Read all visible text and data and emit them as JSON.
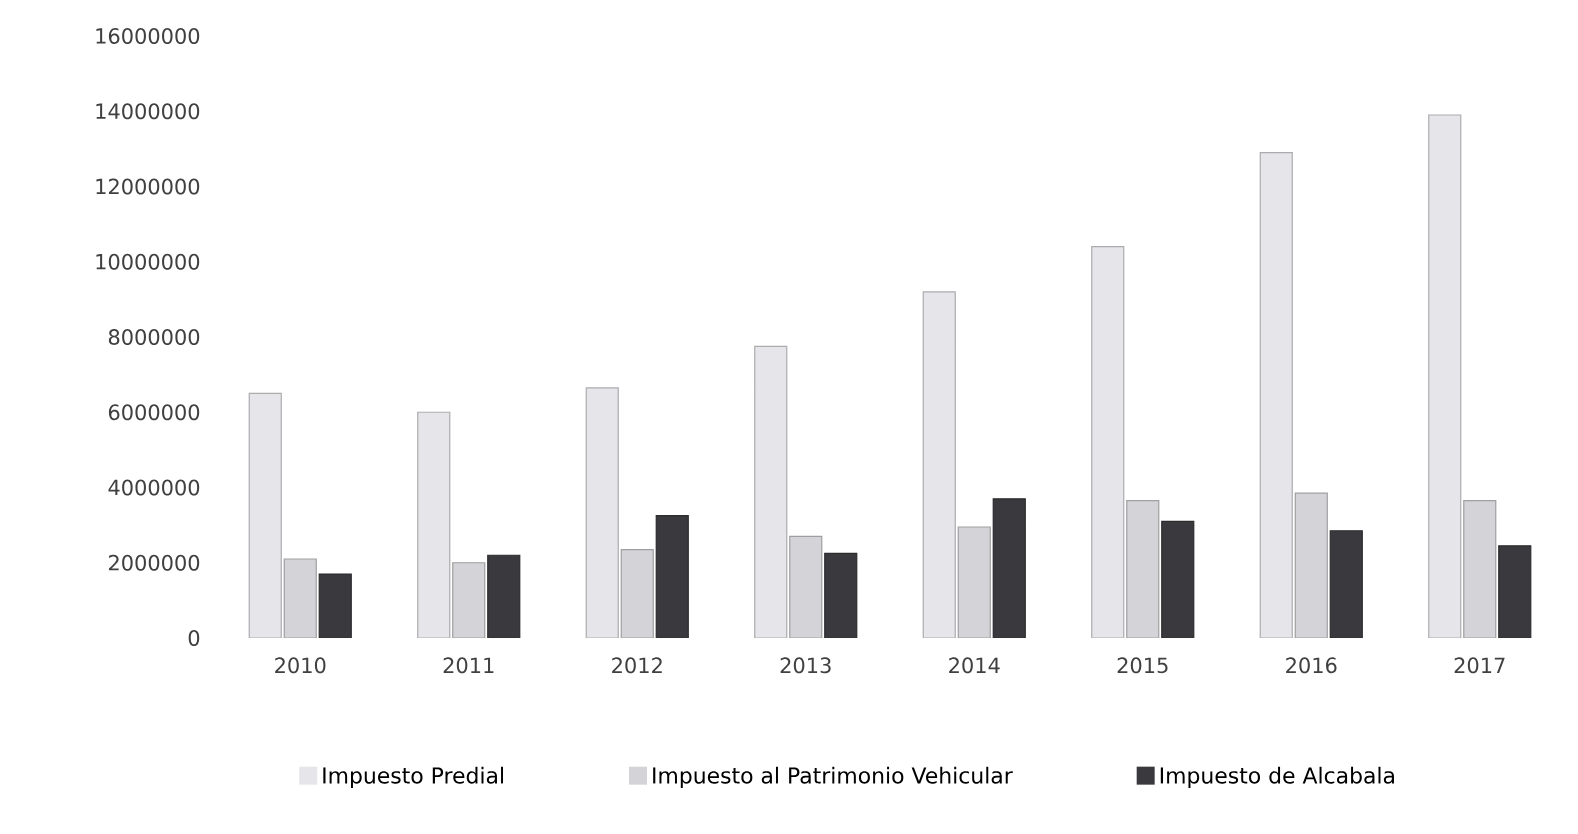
{
  "chart_data": {
    "type": "bar",
    "categories": [
      "2010",
      "2011",
      "2012",
      "2013",
      "2014",
      "2015",
      "2016",
      "2017"
    ],
    "series": [
      {
        "name": "Impuesto Predial",
        "color": "#e6e6ea",
        "values": [
          6500000,
          6000000,
          6650000,
          7750000,
          9200000,
          10400000,
          12900000,
          13900000
        ]
      },
      {
        "name": "Impuesto al Patrimonio Vehicular",
        "color": "#d4d4d8",
        "values": [
          2100000,
          2000000,
          2350000,
          2700000,
          2950000,
          3650000,
          3850000,
          3650000
        ]
      },
      {
        "name": "Impuesto de Alcabala",
        "color": "#3a3a3e",
        "values": [
          1700000,
          2200000,
          3250000,
          2250000,
          3700000,
          3100000,
          2850000,
          2450000
        ]
      }
    ],
    "ylim": [
      0,
      16000000
    ],
    "yticks": [
      0,
      2000000,
      4000000,
      6000000,
      8000000,
      10000000,
      12000000,
      14000000,
      16000000
    ],
    "legend": "bottom",
    "grid": false
  }
}
